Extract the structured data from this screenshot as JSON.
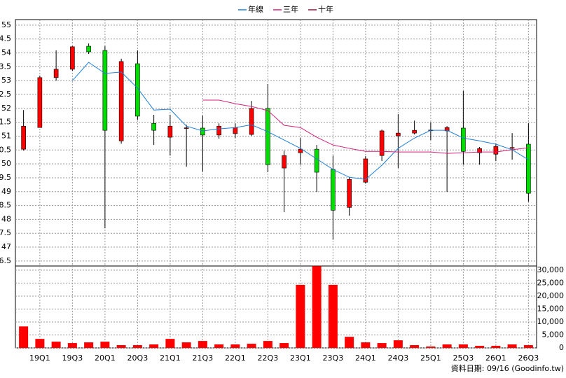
{
  "chart_data": [
    {
      "type": "candlestick",
      "categories": [
        null,
        "19Q1",
        null,
        "19Q3",
        null,
        "20Q1",
        null,
        "20Q3",
        null,
        "21Q1",
        null,
        "21Q3",
        null,
        "22Q1",
        null,
        "22Q3",
        null,
        "23Q1",
        null,
        "23Q3",
        null,
        "24Q1",
        null,
        "24Q3",
        null,
        "25Q1",
        null,
        "25Q3",
        null,
        "26Q1",
        null,
        "26Q3"
      ],
      "open": [
        50.53,
        51.31,
        53.11,
        53.41,
        54.24,
        54.09,
        50.83,
        53.61,
        51.46,
        50.96,
        51.28,
        51.29,
        51.04,
        51.09,
        51.06,
        52.0,
        49.85,
        50.4,
        50.53,
        49.8,
        48.43,
        49.34,
        50.3,
        51.01,
        51.11,
        51.2,
        51.19,
        51.29,
        50.4,
        50.35,
        50.56,
        50.71
      ],
      "high": [
        51.94,
        53.18,
        54.09,
        54.24,
        54.34,
        54.24,
        53.79,
        54.09,
        51.77,
        51.77,
        51.41,
        51.74,
        51.46,
        51.46,
        52.27,
        52.88,
        50.48,
        50.93,
        50.68,
        50.3,
        49.52,
        50.28,
        51.24,
        51.79,
        51.56,
        51.49,
        51.36,
        52.63,
        50.61,
        50.73,
        51.11,
        51.46
      ],
      "low": [
        50.48,
        51.31,
        53.0,
        53.36,
        53.96,
        47.68,
        50.73,
        51.59,
        50.68,
        50.3,
        49.9,
        49.72,
        50.91,
        50.93,
        51.01,
        49.7,
        48.26,
        49.97,
        48.99,
        47.27,
        48.13,
        49.29,
        50.1,
        49.85,
        51.06,
        50.86,
        48.99,
        49.97,
        49.97,
        50.1,
        50.15,
        48.64
      ],
      "close": [
        51.36,
        53.11,
        53.41,
        54.22,
        54.04,
        51.21,
        53.69,
        51.72,
        51.21,
        51.36,
        51.3,
        51.04,
        51.36,
        51.31,
        52.0,
        49.97,
        50.3,
        50.53,
        49.7,
        48.33,
        49.44,
        50.18,
        51.19,
        51.11,
        51.21,
        51.22,
        51.31,
        50.45,
        50.55,
        50.63,
        50.59,
        48.94
      ],
      "up_color": "#ff0000",
      "down_color": "#00dd00",
      "series": [
        {
          "name": "年線",
          "color": "#1f7fd8",
          "values": [
            null,
            null,
            null,
            53.0,
            53.66,
            53.26,
            53.31,
            52.73,
            51.94,
            51.97,
            51.36,
            51.19,
            51.26,
            51.31,
            51.41,
            51.16,
            50.86,
            50.56,
            50.18,
            49.8,
            49.52,
            49.44,
            49.95,
            50.56,
            50.93,
            51.21,
            51.21,
            50.93,
            50.83,
            50.71,
            50.51,
            50.15
          ]
        },
        {
          "name": "三年",
          "color": "#d4207a",
          "values": [
            null,
            null,
            null,
            null,
            null,
            null,
            null,
            null,
            null,
            null,
            null,
            52.3,
            52.3,
            52.17,
            52.07,
            51.92,
            51.39,
            51.31,
            50.96,
            50.68,
            50.56,
            50.45,
            50.45,
            50.43,
            50.43,
            50.43,
            50.38,
            50.4,
            50.43,
            50.43,
            50.51,
            50.58
          ]
        },
        {
          "name": "十年",
          "color": "#a0103a",
          "values": [
            null,
            null,
            null,
            null,
            null,
            null,
            null,
            null,
            null,
            null,
            null,
            null,
            null,
            null,
            null,
            null,
            null,
            null,
            null,
            null,
            null,
            null,
            null,
            null,
            null,
            null,
            null,
            null,
            null,
            null,
            null,
            null
          ]
        }
      ],
      "ylim": [
        46.32,
        55.2
      ],
      "yticks": [
        55,
        {
          "value": 54.5,
          "label": "4.5"
        },
        54,
        {
          "value": 53.5,
          "label": "3.5"
        },
        53,
        {
          "value": 52.5,
          "label": "2.5"
        },
        52,
        {
          "value": 51.5,
          "label": "1.5"
        },
        51,
        {
          "value": 50.5,
          "label": "0.5"
        },
        50,
        {
          "value": 49.5,
          "label": "9.5"
        },
        49,
        {
          "value": 48.5,
          "label": "8.5"
        },
        48,
        {
          "value": 47.5,
          "label": "7.5"
        },
        47,
        {
          "value": 46.5,
          "label": "6.5"
        }
      ],
      "grid": true,
      "legend": "top"
    },
    {
      "type": "bar",
      "values": [
        8290,
        3480,
        2410,
        1870,
        2140,
        2410,
        1070,
        1070,
        1340,
        3480,
        2140,
        2670,
        1340,
        1340,
        1600,
        2670,
        1870,
        24330,
        31550,
        24330,
        4280,
        2140,
        1870,
        2940,
        1070,
        530,
        1340,
        1340,
        800,
        800,
        1340,
        1070
      ],
      "color": "#ff0000",
      "ylim": [
        0,
        31600
      ],
      "yticks": [
        {
          "value": 30000,
          "label": "30,000"
        },
        {
          "value": 25000,
          "label": "25,000"
        },
        {
          "value": 20000,
          "label": "20,000"
        },
        {
          "value": 15000,
          "label": "15,000"
        },
        {
          "value": 10000,
          "label": "10,000"
        },
        {
          "value": 5000,
          "label": "5,000"
        },
        0
      ],
      "grid": true,
      "annotation": "資料日期: 09/16  (Goodinfo.tw)"
    }
  ]
}
